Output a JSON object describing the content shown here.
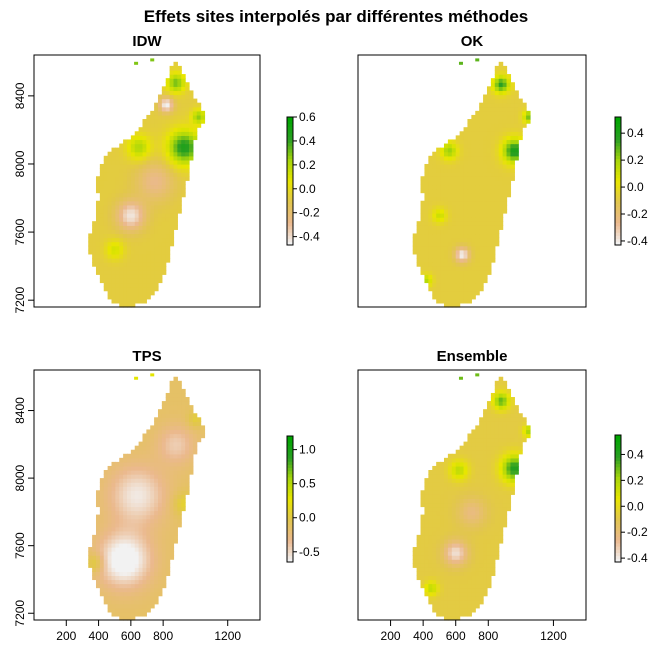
{
  "title": "Effets sites interpolés par différentes méthodes",
  "chart_data": [
    {
      "type": "heatmap",
      "title": "IDW",
      "ylabel": "",
      "xlabel": "",
      "x_ticks": [],
      "y_ticks": [
        "7200",
        "7600",
        "8000",
        "8400"
      ],
      "y_tick_values": [
        7200,
        7600,
        8000,
        8400
      ],
      "xlim": [
        0,
        1400
      ],
      "ylim": [
        7160,
        8640
      ],
      "colorbar_ticks": [
        "-0.4",
        "-0.2",
        "0.0",
        "0.2",
        "0.4",
        "0.6"
      ],
      "colorbar_values": [
        -0.4,
        -0.2,
        0.0,
        0.2,
        0.4,
        0.6
      ],
      "zlim": [
        -0.47,
        0.6
      ],
      "hotspots": [
        {
          "x": 930,
          "y": 8100,
          "v": 0.55,
          "r": 70
        },
        {
          "x": 650,
          "y": 8100,
          "v": 0.3,
          "r": 50
        },
        {
          "x": 880,
          "y": 8480,
          "v": 0.4,
          "r": 40
        },
        {
          "x": 1020,
          "y": 8280,
          "v": 0.35,
          "r": 30
        },
        {
          "x": 600,
          "y": 7700,
          "v": -0.35,
          "r": 60
        },
        {
          "x": 750,
          "y": 7900,
          "v": -0.2,
          "r": 80
        },
        {
          "x": 500,
          "y": 7500,
          "v": 0.2,
          "r": 40
        },
        {
          "x": 820,
          "y": 8350,
          "v": -0.4,
          "r": 30
        }
      ]
    },
    {
      "type": "heatmap",
      "title": "OK",
      "ylabel": "",
      "xlabel": "",
      "x_ticks": [],
      "y_ticks": [],
      "y_tick_values": [],
      "xlim": [
        0,
        1400
      ],
      "ylim": [
        7160,
        8640
      ],
      "colorbar_ticks": [
        "-0.4",
        "-0.2",
        "0.0",
        "0.2",
        "0.4"
      ],
      "colorbar_values": [
        -0.4,
        -0.2,
        0.0,
        0.2,
        0.4
      ],
      "zlim": [
        -0.43,
        0.52
      ],
      "hotspots": [
        {
          "x": 960,
          "y": 8080,
          "v": 0.5,
          "r": 50
        },
        {
          "x": 880,
          "y": 8470,
          "v": 0.45,
          "r": 35
        },
        {
          "x": 560,
          "y": 8080,
          "v": 0.3,
          "r": 35
        },
        {
          "x": 1050,
          "y": 8280,
          "v": 0.35,
          "r": 25
        },
        {
          "x": 640,
          "y": 7470,
          "v": -0.35,
          "r": 30
        },
        {
          "x": 500,
          "y": 7700,
          "v": 0.2,
          "r": 30
        },
        {
          "x": 420,
          "y": 7320,
          "v": 0.25,
          "r": 25
        }
      ]
    },
    {
      "type": "heatmap",
      "title": "TPS",
      "ylabel": "",
      "xlabel": "",
      "x_ticks": [
        "200",
        "400",
        "600",
        "800",
        "1200"
      ],
      "x_tick_values": [
        200,
        400,
        600,
        800,
        1200
      ],
      "y_ticks": [
        "7200",
        "7600",
        "8000",
        "8400"
      ],
      "y_tick_values": [
        7200,
        7600,
        8000,
        8400
      ],
      "xlim": [
        0,
        1400
      ],
      "ylim": [
        7160,
        8640
      ],
      "colorbar_ticks": [
        "-0.5",
        "0.0",
        "0.5",
        "1.0"
      ],
      "colorbar_values": [
        -0.5,
        0.0,
        0.5,
        1.0
      ],
      "zlim": [
        -0.65,
        1.2
      ],
      "hotspots": [
        {
          "x": 560,
          "y": 7520,
          "v": -0.65,
          "r": 110
        },
        {
          "x": 640,
          "y": 7900,
          "v": -0.45,
          "r": 120
        },
        {
          "x": 880,
          "y": 8200,
          "v": -0.3,
          "r": 80
        },
        {
          "x": 930,
          "y": 7850,
          "v": 0.25,
          "r": 50
        },
        {
          "x": 380,
          "y": 7500,
          "v": 0.3,
          "r": 40
        },
        {
          "x": 1000,
          "y": 8350,
          "v": 0.2,
          "r": 35
        }
      ]
    },
    {
      "type": "heatmap",
      "title": "Ensemble",
      "ylabel": "",
      "xlabel": "",
      "x_ticks": [
        "200",
        "400",
        "600",
        "800",
        "1200"
      ],
      "x_tick_values": [
        200,
        400,
        600,
        800,
        1200
      ],
      "y_ticks": [],
      "y_tick_values": [],
      "xlim": [
        0,
        1400
      ],
      "ylim": [
        7160,
        8640
      ],
      "colorbar_ticks": [
        "-0.4",
        "-0.2",
        "0.0",
        "0.2",
        "0.4"
      ],
      "colorbar_values": [
        -0.4,
        -0.2,
        0.0,
        0.2,
        0.4
      ],
      "zlim": [
        -0.43,
        0.55
      ],
      "hotspots": [
        {
          "x": 960,
          "y": 8060,
          "v": 0.5,
          "r": 55
        },
        {
          "x": 880,
          "y": 8460,
          "v": 0.4,
          "r": 35
        },
        {
          "x": 620,
          "y": 8050,
          "v": 0.25,
          "r": 40
        },
        {
          "x": 600,
          "y": 7560,
          "v": -0.3,
          "r": 50
        },
        {
          "x": 700,
          "y": 7800,
          "v": -0.15,
          "r": 60
        },
        {
          "x": 450,
          "y": 7350,
          "v": 0.25,
          "r": 30
        },
        {
          "x": 1050,
          "y": 8280,
          "v": 0.3,
          "r": 25
        }
      ]
    }
  ],
  "colormap": [
    "#f2f2f2",
    "#ebb98e",
    "#e2c64e",
    "#e8e600",
    "#a8d60c",
    "#2b9f24",
    "#00a600"
  ],
  "border_color": "#000000"
}
